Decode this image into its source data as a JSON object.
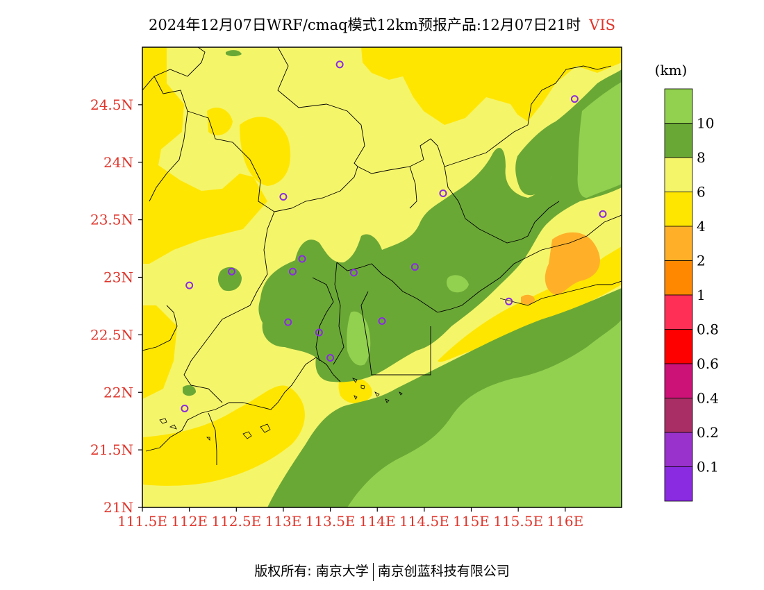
{
  "title": {
    "main": "2024年12月07日WRF/cmaq模式12km预报产品:12月07日21时",
    "variable": "VIS",
    "variable_color": "#e0342a"
  },
  "colorbar": {
    "unit": "(km)",
    "boundary_labels": [
      "10",
      "8",
      "6",
      "4",
      "2",
      "1",
      "0.8",
      "0.6",
      "0.4",
      "0.2",
      "0.1"
    ],
    "colors_top_to_bottom": [
      "#92d050",
      "#6aa836",
      "#f5f56a",
      "#ffe600",
      "#ffb028",
      "#ff8800",
      "#ff2f55",
      "#ff0000",
      "#cc1177",
      "#aa2e66",
      "#9932cc",
      "#8a2be2"
    ]
  },
  "axes": {
    "lat_labels": [
      "24.5N",
      "24N",
      "23.5N",
      "23N",
      "22.5N",
      "22N",
      "21.5N",
      "21N"
    ],
    "lon_labels": [
      "111.5E",
      "112E",
      "112.5E",
      "113E",
      "113.5E",
      "114E",
      "114.5E",
      "115E",
      "115.5E",
      "116E"
    ],
    "label_color": "#e0342a"
  },
  "stations": [
    {
      "lon": 113.6,
      "lat": 24.85
    },
    {
      "lon": 116.1,
      "lat": 24.55
    },
    {
      "lon": 113.0,
      "lat": 23.7
    },
    {
      "lon": 114.7,
      "lat": 23.73
    },
    {
      "lon": 116.4,
      "lat": 23.55
    },
    {
      "lon": 112.45,
      "lat": 23.05
    },
    {
      "lon": 112.0,
      "lat": 22.93
    },
    {
      "lon": 113.1,
      "lat": 23.05
    },
    {
      "lon": 113.2,
      "lat": 23.16
    },
    {
      "lon": 113.75,
      "lat": 23.04
    },
    {
      "lon": 114.4,
      "lat": 23.09
    },
    {
      "lon": 115.4,
      "lat": 22.79
    },
    {
      "lon": 113.05,
      "lat": 22.61
    },
    {
      "lon": 113.38,
      "lat": 22.52
    },
    {
      "lon": 114.05,
      "lat": 22.62
    },
    {
      "lon": 113.5,
      "lat": 22.3
    },
    {
      "lon": 111.95,
      "lat": 21.86
    }
  ],
  "footer": {
    "left": "版权所有: 南京大学",
    "right": "南京创蓝科技有限公司"
  }
}
